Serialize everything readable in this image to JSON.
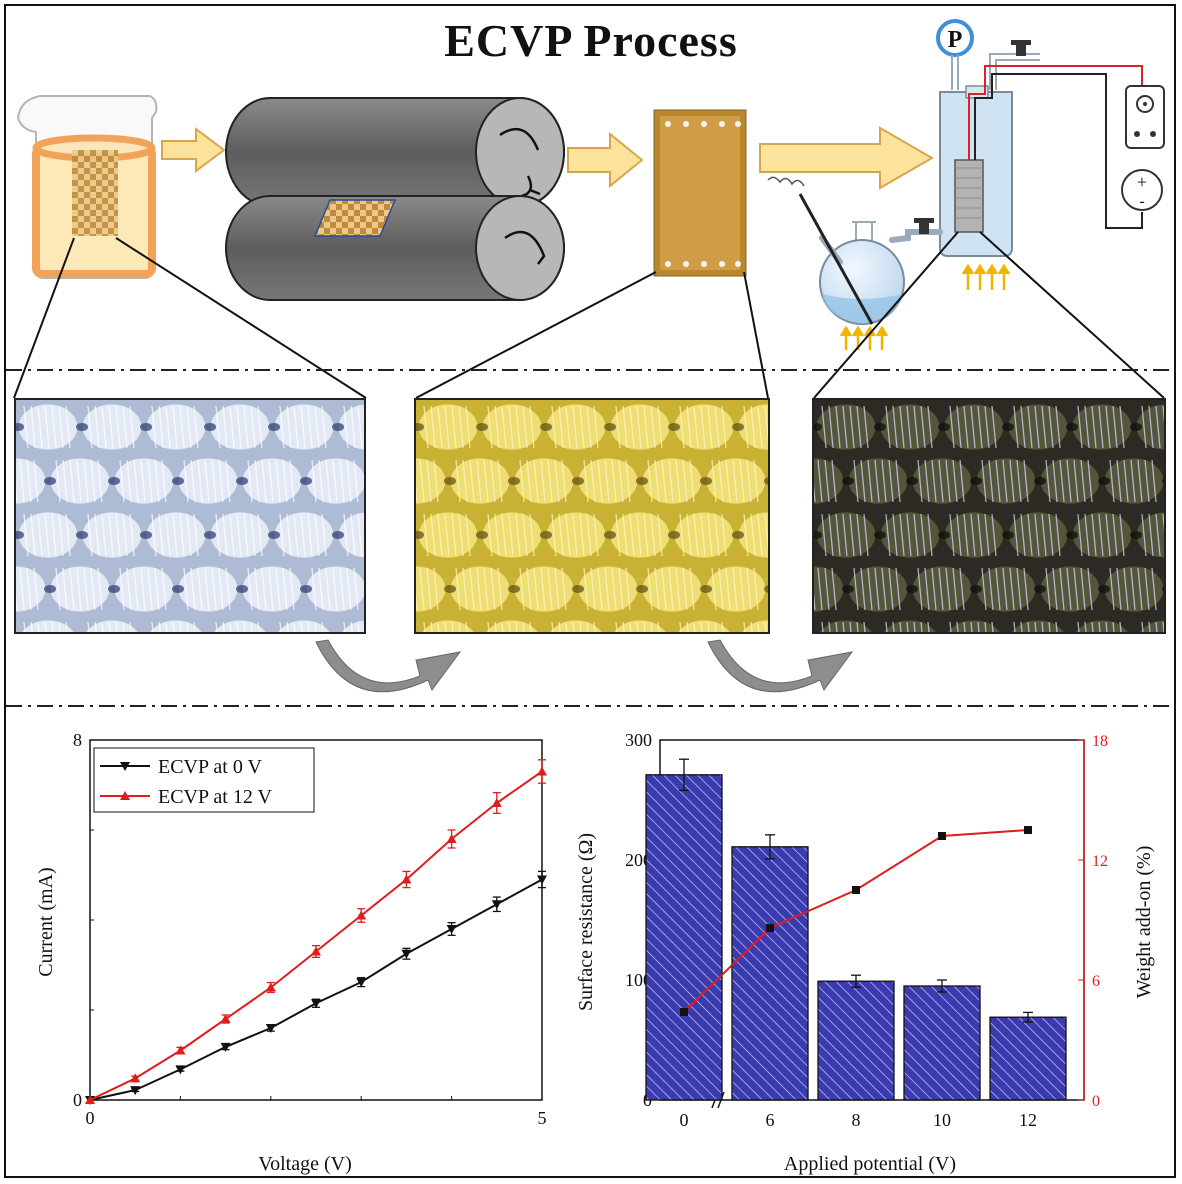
{
  "title": "ECVP Process",
  "colors": {
    "arrow_fill": "#fbe39c",
    "arrow_stroke": "#d9a54a",
    "beaker_orange": "#f5b56a",
    "roller_gray": "#6f6f6f",
    "fabric_gold": "#c99a3a",
    "series_black": "#111111",
    "series_red": "#e01c1c",
    "bar_blue": "#3b3bb0"
  },
  "process": {
    "pressure_gauge_label": "P",
    "power_plus": "+",
    "power_minus": "-"
  },
  "micrographs": [
    {
      "name": "raw-fabric",
      "tone": "white-blue"
    },
    {
      "name": "impregnated-fabric",
      "tone": "yellow"
    },
    {
      "name": "ecvp-treated-fabric",
      "tone": "dark"
    }
  ],
  "chart_data": [
    {
      "type": "line",
      "xlabel": "Voltage (V)",
      "ylabel": "Current (mA)",
      "xlim": [
        0,
        5
      ],
      "ylim": [
        0,
        8
      ],
      "x_ticks": [
        "0",
        "5"
      ],
      "y_ticks": [
        "0",
        "8"
      ],
      "legend_position": "top-left",
      "x": [
        0,
        0.5,
        1.0,
        1.5,
        2.0,
        2.5,
        3.0,
        3.5,
        4.0,
        4.5,
        5.0
      ],
      "series": [
        {
          "name": "ECVP at 0 V",
          "color": "#111111",
          "marker": "triangle-down",
          "values": [
            0,
            0.22,
            0.68,
            1.18,
            1.6,
            2.15,
            2.62,
            3.25,
            3.8,
            4.35,
            4.9
          ],
          "errors": [
            0,
            0.03,
            0.04,
            0.06,
            0.07,
            0.09,
            0.1,
            0.12,
            0.14,
            0.16,
            0.18
          ]
        },
        {
          "name": "ECVP at 12 V",
          "color": "#e01c1c",
          "marker": "triangle-up",
          "values": [
            0,
            0.48,
            1.1,
            1.8,
            2.5,
            3.3,
            4.1,
            4.9,
            5.8,
            6.6,
            7.3
          ],
          "errors": [
            0,
            0.05,
            0.07,
            0.09,
            0.11,
            0.13,
            0.15,
            0.18,
            0.2,
            0.23,
            0.26
          ]
        }
      ]
    },
    {
      "type": "bar",
      "categories": [
        "0",
        "6",
        "8",
        "10",
        "12"
      ],
      "xlabel": "Applied potential (V)",
      "ylabel": "Surface resistance (Ω)",
      "ylim": [
        0,
        300
      ],
      "y_ticks": [
        "0",
        "100",
        "200",
        "300"
      ],
      "values": [
        271,
        211,
        99,
        95,
        69
      ],
      "errors": [
        13,
        10,
        5,
        5,
        4
      ],
      "bar_color": "#3b3bb0",
      "secondary_axis": {
        "ylabel": "Weight add-on (%)",
        "ylim": [
          0,
          18
        ],
        "y_ticks": [
          "0",
          "6",
          "12",
          "18"
        ],
        "color": "#e01c1c",
        "values": [
          4.4,
          8.6,
          10.5,
          13.2,
          13.5
        ]
      }
    }
  ]
}
